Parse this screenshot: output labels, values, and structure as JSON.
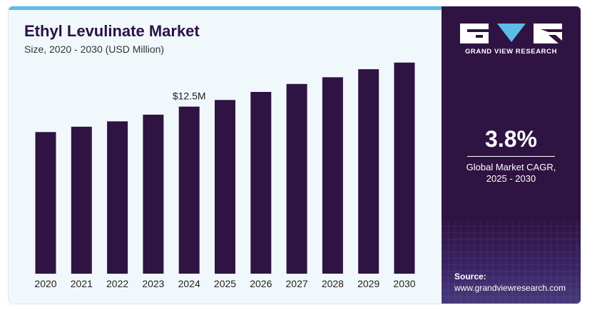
{
  "chart_data": {
    "type": "bar",
    "title": "Ethyl Levulinate Market",
    "subtitle": "Size, 2020 - 2030 (USD Million)",
    "categories": [
      "2020",
      "2021",
      "2022",
      "2023",
      "2024",
      "2025",
      "2026",
      "2027",
      "2028",
      "2029",
      "2030"
    ],
    "values": [
      10.6,
      11.0,
      11.4,
      11.9,
      12.5,
      13.0,
      13.6,
      14.2,
      14.7,
      15.3,
      15.8
    ],
    "annotations": [
      {
        "category": "2024",
        "label": "$12.5M"
      }
    ],
    "ylim": [
      0,
      16.8
    ],
    "grid": false,
    "legend": "none"
  },
  "colors": {
    "bar": "#2f1342",
    "panel": "#f1f8fc",
    "accent": "#5bbde6",
    "sidebar": "#2f1342"
  },
  "brand": {
    "logo_icon": "grand-view-research-logo",
    "name": "GRAND VIEW RESEARCH"
  },
  "cagr": {
    "value": "3.8%",
    "label_line1": "Global  Market CAGR,",
    "label_line2": "2025 - 2030"
  },
  "source": {
    "label": "Source:",
    "url": "www.grandviewresearch.com"
  }
}
